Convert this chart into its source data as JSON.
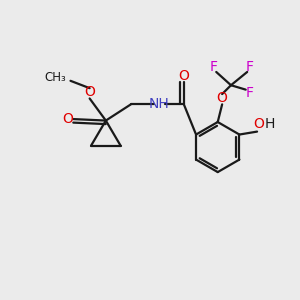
{
  "background_color": "#ebebeb",
  "bond_color": "#1a1a1a",
  "oxygen_color": "#e00000",
  "nitrogen_color": "#4040c0",
  "fluorine_color": "#cc00cc",
  "carbon_color": "#1a1a1a",
  "figsize": [
    3.0,
    3.0
  ],
  "dpi": 100,
  "xlim": [
    0,
    10
  ],
  "ylim": [
    0,
    10
  ]
}
